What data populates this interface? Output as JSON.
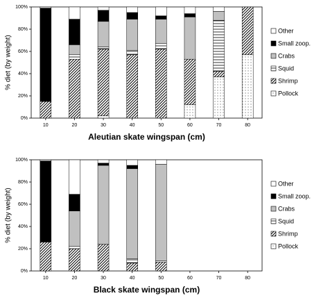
{
  "chart_data": [
    {
      "type": "bar",
      "stacked": true,
      "xlabel": "Aleutian skate wingspan (cm)",
      "ylabel": "% diet (by weight)",
      "categories": [
        "10",
        "20",
        "30",
        "40",
        "50",
        "60",
        "70",
        "80"
      ],
      "ylim": [
        0,
        100
      ],
      "yticks": [
        {
          "value": 0,
          "label": "0%"
        },
        {
          "value": 20,
          "label": "20%"
        },
        {
          "value": 40,
          "label": "40%"
        },
        {
          "value": 60,
          "label": "60%"
        },
        {
          "value": 80,
          "label": "80%"
        },
        {
          "value": 100,
          "label": "100%"
        }
      ],
      "legend": "right",
      "series": [
        {
          "name": "Pollock",
          "color": "#ffffff",
          "pattern": "dots",
          "values": [
            0,
            0,
            2,
            0,
            0,
            12,
            37,
            57
          ]
        },
        {
          "name": "Shrimp",
          "color": "#ffffff",
          "pattern": "diagonal",
          "values": [
            15,
            53,
            60,
            57,
            62,
            41,
            5,
            43
          ]
        },
        {
          "name": "Squid",
          "color": "#ffffff",
          "pattern": "horizontal",
          "values": [
            0,
            4,
            2,
            4,
            5,
            0,
            46,
            0
          ]
        },
        {
          "name": "Crabs",
          "color": "#c0c0c0",
          "values": [
            0,
            9,
            23,
            28,
            22,
            38,
            8,
            0
          ]
        },
        {
          "name": "Small zoop.",
          "color": "#000000",
          "values": [
            84,
            23,
            10,
            6,
            3,
            3,
            0,
            0
          ]
        },
        {
          "name": "Other",
          "color": "#ffffff",
          "values": [
            1,
            11,
            3,
            5,
            8,
            6,
            4,
            0
          ]
        }
      ]
    },
    {
      "type": "bar",
      "stacked": true,
      "xlabel": "Black skate wingspan (cm)",
      "ylabel": "% diet (by weight)",
      "categories": [
        "10",
        "20",
        "30",
        "40",
        "50",
        "60",
        "70",
        "80"
      ],
      "ylim": [
        0,
        100
      ],
      "yticks": [
        {
          "value": 0,
          "label": "0%"
        },
        {
          "value": 20,
          "label": "20%"
        },
        {
          "value": 40,
          "label": "40%"
        },
        {
          "value": 60,
          "label": "60%"
        },
        {
          "value": 80,
          "label": "80%"
        },
        {
          "value": 100,
          "label": "100%"
        }
      ],
      "legend": "right",
      "series": [
        {
          "name": "Pollock",
          "color": "#ffffff",
          "pattern": "dots",
          "values": [
            0,
            0,
            0,
            0,
            0,
            0,
            0,
            0
          ]
        },
        {
          "name": "Shrimp",
          "color": "#ffffff",
          "pattern": "diagonal",
          "values": [
            26,
            20,
            24,
            7,
            8,
            0,
            0,
            0
          ]
        },
        {
          "name": "Squid",
          "color": "#ffffff",
          "pattern": "horizontal",
          "values": [
            0,
            2,
            0,
            4,
            1,
            0,
            0,
            0
          ]
        },
        {
          "name": "Crabs",
          "color": "#c0c0c0",
          "values": [
            0,
            32,
            71,
            81,
            87,
            0,
            0,
            0
          ]
        },
        {
          "name": "Small zoop.",
          "color": "#000000",
          "values": [
            73,
            15,
            2,
            3,
            0,
            0,
            0,
            0
          ]
        },
        {
          "name": "Other",
          "color": "#ffffff",
          "values": [
            1,
            31,
            3,
            5,
            4,
            0,
            0,
            0
          ]
        }
      ]
    }
  ]
}
